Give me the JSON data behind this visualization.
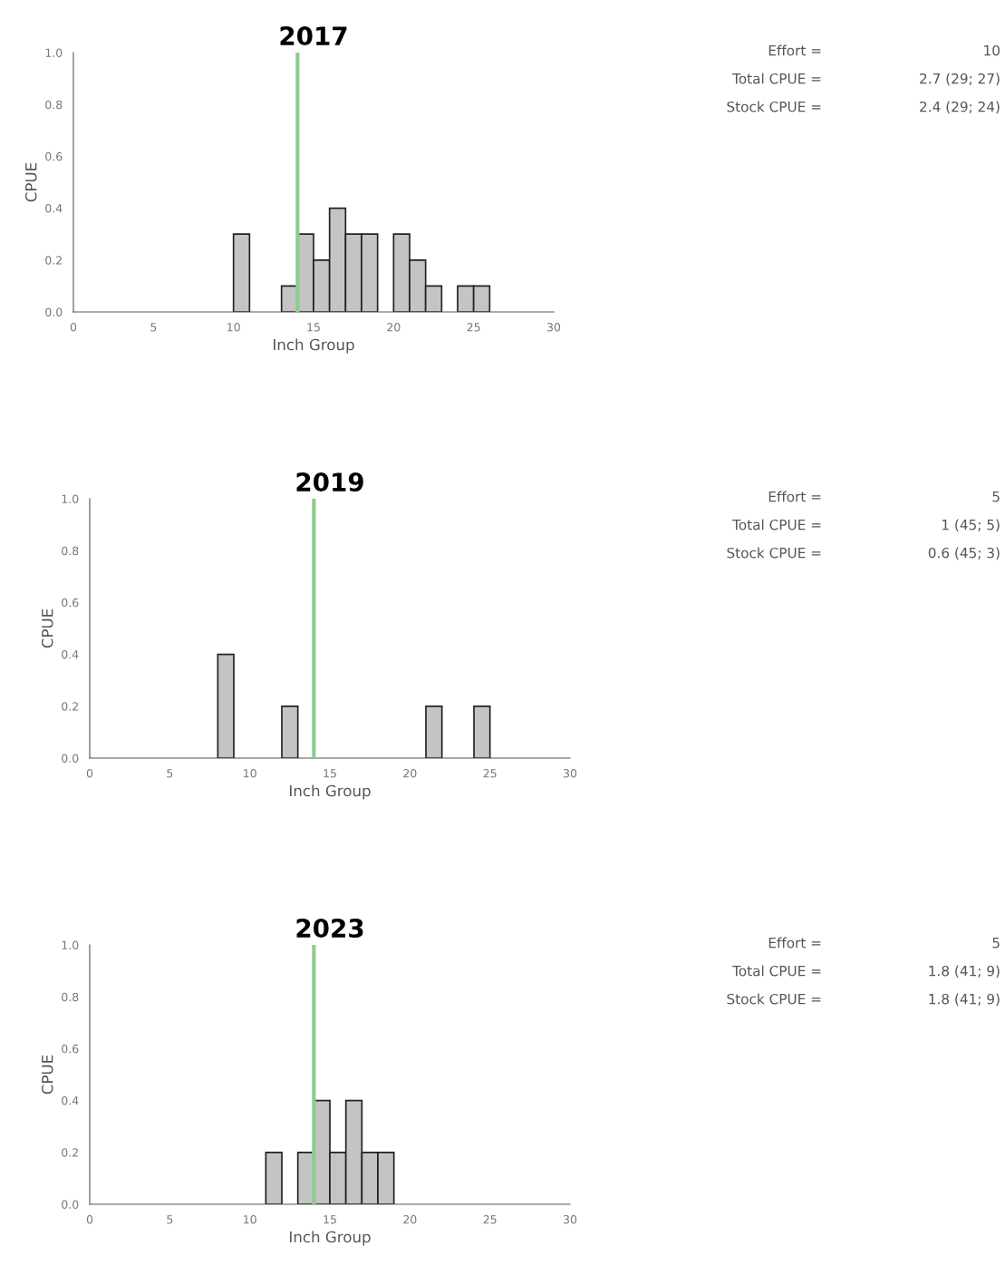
{
  "chart_data": [
    {
      "type": "histogram",
      "title": "2017",
      "xlabel": "Inch Group",
      "ylabel": "CPUE",
      "color": "#c4c4c4",
      "bins": [
        0,
        1,
        2,
        3,
        4,
        5,
        6,
        7,
        8,
        9,
        10,
        11,
        12,
        13,
        14,
        15,
        16,
        17,
        18,
        19,
        20,
        21,
        22,
        23,
        24,
        25,
        26,
        27,
        28,
        29,
        30
      ],
      "values": [
        0,
        0,
        0,
        0,
        0,
        0,
        0,
        0,
        0,
        0,
        0.3,
        0,
        0,
        0.1,
        0.3,
        0.2,
        0.4,
        0.3,
        0.3,
        0,
        0.3,
        0.2,
        0.1,
        0,
        0.1,
        0.1,
        0,
        0,
        0,
        0
      ],
      "xlim": [
        0,
        30
      ],
      "xticks": [
        0,
        5,
        10,
        15,
        20,
        25,
        30
      ],
      "ylim": [
        0,
        1
      ],
      "yticks": [
        {
          "value": 0,
          "label": "0.0"
        },
        {
          "value": 0.2,
          "label": "0.2"
        },
        {
          "value": 0.4,
          "label": "0.4"
        },
        {
          "value": 0.6,
          "label": "0.6"
        },
        {
          "value": 0.8,
          "label": "0.8"
        },
        {
          "value": 1,
          "label": "1.0"
        }
      ],
      "ref_lines": [
        {
          "axis": "x",
          "value": 14,
          "color": "#8fcb8f"
        }
      ],
      "annotations": [
        "Effort =",
        "10",
        "Total CPUE =",
        "2.7 (29; 27)",
        "Stock CPUE =",
        "2.4 (29; 24)"
      ]
    },
    {
      "type": "histogram",
      "title": "2019",
      "xlabel": "Inch Group",
      "ylabel": "CPUE",
      "color": "#c4c4c4",
      "bins": [
        0,
        1,
        2,
        3,
        4,
        5,
        6,
        7,
        8,
        9,
        10,
        11,
        12,
        13,
        14,
        15,
        16,
        17,
        18,
        19,
        20,
        21,
        22,
        23,
        24,
        25,
        26,
        27,
        28,
        29,
        30
      ],
      "values": [
        0,
        0,
        0,
        0,
        0,
        0,
        0,
        0,
        0.4,
        0,
        0,
        0,
        0.2,
        0,
        0,
        0,
        0,
        0,
        0,
        0,
        0,
        0.2,
        0,
        0,
        0.2,
        0,
        0,
        0,
        0,
        0
      ],
      "xlim": [
        0,
        30
      ],
      "xticks": [
        0,
        5,
        10,
        15,
        20,
        25,
        30
      ],
      "ylim": [
        0,
        1
      ],
      "yticks": [
        {
          "value": 0,
          "label": "0.0"
        },
        {
          "value": 0.2,
          "label": "0.2"
        },
        {
          "value": 0.4,
          "label": "0.4"
        },
        {
          "value": 0.6,
          "label": "0.6"
        },
        {
          "value": 0.8,
          "label": "0.8"
        },
        {
          "value": 1,
          "label": "1.0"
        }
      ],
      "ref_lines": [
        {
          "axis": "x",
          "value": 14,
          "color": "#8fcb8f"
        }
      ],
      "annotations": [
        "Effort =",
        "5",
        "Total CPUE =",
        "1 (45; 5)",
        "Stock CPUE =",
        "0.6 (45; 3)"
      ]
    },
    {
      "type": "histogram",
      "title": "2023",
      "xlabel": "Inch Group",
      "ylabel": "CPUE",
      "color": "#c4c4c4",
      "bins": [
        0,
        1,
        2,
        3,
        4,
        5,
        6,
        7,
        8,
        9,
        10,
        11,
        12,
        13,
        14,
        15,
        16,
        17,
        18,
        19,
        20,
        21,
        22,
        23,
        24,
        25,
        26,
        27,
        28,
        29,
        30
      ],
      "values": [
        0,
        0,
        0,
        0,
        0,
        0,
        0,
        0,
        0,
        0,
        0,
        0.2,
        0,
        0.2,
        0.4,
        0.2,
        0.4,
        0.2,
        0.2,
        0,
        0,
        0,
        0,
        0,
        0,
        0,
        0,
        0,
        0,
        0
      ],
      "xlim": [
        0,
        30
      ],
      "xticks": [
        0,
        5,
        10,
        15,
        20,
        25,
        30
      ],
      "ylim": [
        0,
        1
      ],
      "yticks": [
        {
          "value": 0,
          "label": "0.0"
        },
        {
          "value": 0.2,
          "label": "0.2"
        },
        {
          "value": 0.4,
          "label": "0.4"
        },
        {
          "value": 0.6,
          "label": "0.6"
        },
        {
          "value": 0.8,
          "label": "0.8"
        },
        {
          "value": 1,
          "label": "1.0"
        }
      ],
      "ref_lines": [
        {
          "axis": "x",
          "value": 14,
          "color": "#8fcb8f"
        }
      ],
      "annotations": [
        "Effort =",
        "5",
        "Total CPUE =",
        "1.8 (41; 9)",
        "Stock CPUE =",
        "1.8 (41; 9)"
      ]
    }
  ]
}
